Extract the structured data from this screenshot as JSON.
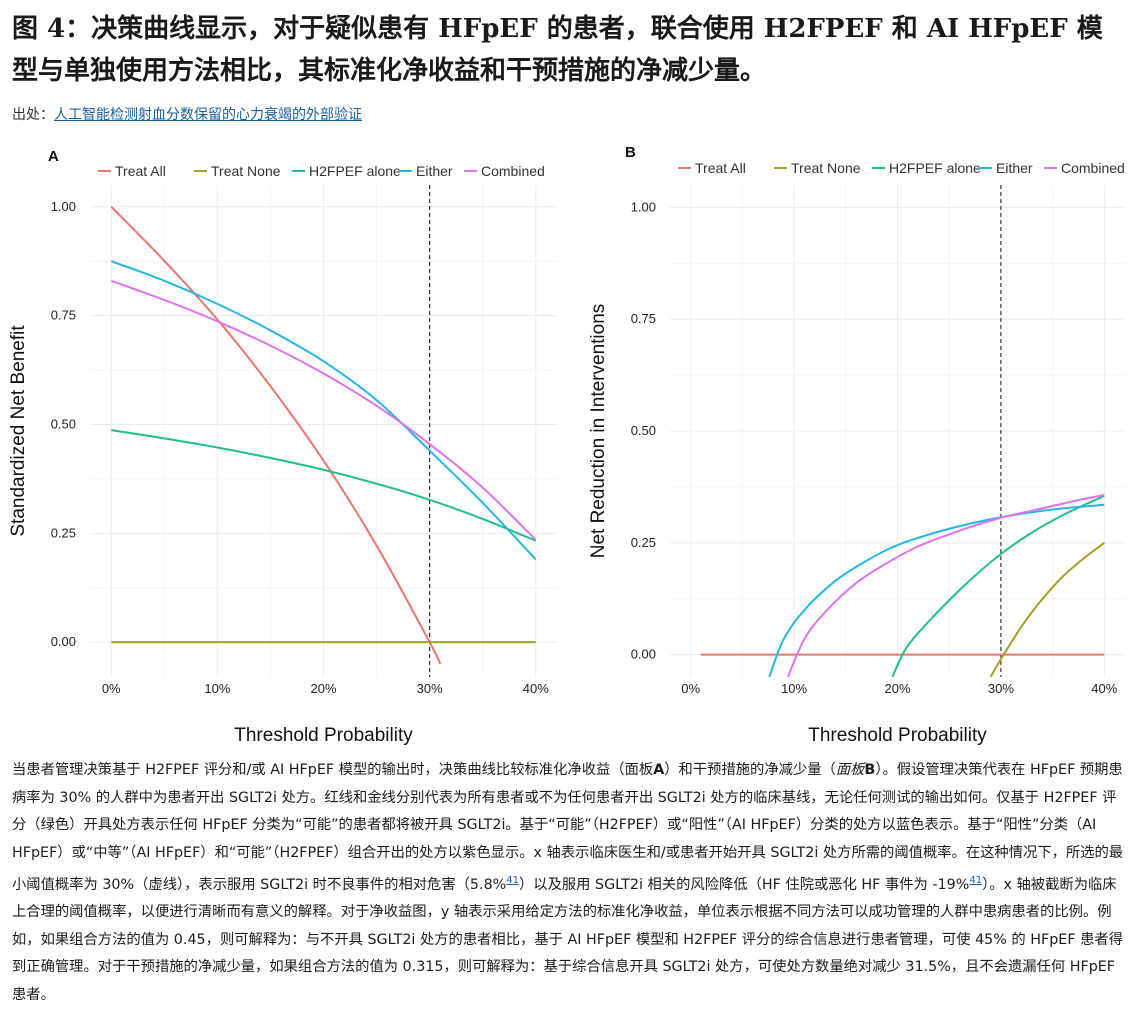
{
  "title": "图 4：决策曲线显示，对于疑似患有 HFpEF 的患者，联合使用 H2FPEF 和 AI HFpEF 模型与单独使用方法相比，其标准化净收益和干预措施的净减少量。",
  "source": {
    "label": "出处：",
    "link_text": "人工智能检测射血分数保留的心力衰竭的外部验证"
  },
  "caption": {
    "p1": "当患者管理决策基于 H2FPEF 评分和/或 AI HFpEF 模型的输出时，决策曲线比较标准化净收益（面板",
    "p1_bold": "A",
    "p2": "）和干预措施的净减少量（",
    "p2_italic": "面板",
    "p2_bold": "B",
    "p3": "）。假设管理决策代表在 HFpEF 预期患病率为 30% 的人群中为患者开出 SGLT2i 处方。红线和金线分别代表为所有患者或不为任何患者开出 SGLT2i 处方的临床基线，无论任何测试的输出如何。仅基于 H2FPEF 评分（绿色）开具处方表示任何 HFpEF 分类为“可能”的患者都将被开具 SGLT2i。基于“可能”（H2FPEF）或“阳性”（AI HFpEF）分类的处方以蓝色表示。基于“阳性”分类（AI HFpEF）或“中等”（AI HFpEF）和“可能”（H2FPEF）组合开出的处方以紫色显示。x 轴表示临床医生和/或患者开始开具 SGLT2i 处方所需的阈值概率。在这种情况下，所选的最小阈值概率为 30%（虚线），表示服用 SGLT2i 时不良事件的相对危害（5.8%",
    "cite1": "41",
    "p4": "）以及服用 SGLT2i 相关的风险降低（HF 住院或恶化 HF 事件为 -19%",
    "cite2": "41",
    "p5": "）。x 轴被截断为临床上合理的阈值概率，以便进行清晰而有意义的解释。对于净收益图，y 轴表示采用给定方法的标准化净收益，单位表示根据不同方法可以成功管理的人群中患病患者的比例。例如，如果组合方法的值为 0.45，则可解释为：与不开具 SGLT2i 处方的患者相比，基于 AI HFpEF 模型和 H2FPEF 评分的综合信息进行患者管理，可使 45% 的 HFpEF 患者得到正确管理。对于干预措施的净减少量，如果组合方法的值为 0.315，则可解释为：基于综合信息开具 SGLT2i 处方，可使处方数量绝对减少 31.5%，且不会遗漏任何 HFpEF 患者。"
  },
  "colors": {
    "treat_all": "#E8766C",
    "treat_none": "#A3A123",
    "h2fpef_alone": "#1FBE8F",
    "either": "#24B7E2",
    "combined": "#DE73EC",
    "reference_line": "#333333",
    "grid": "#ececec"
  },
  "chart_data": [
    {
      "panel_label": "A",
      "type": "line",
      "xlabel": "Threshold Probability",
      "ylabel": "Standardized Net Benefit",
      "x_ticks": [
        "0%",
        "10%",
        "20%",
        "30%",
        "40%"
      ],
      "x_tick_values": [
        0,
        0.1,
        0.2,
        0.3,
        0.4
      ],
      "y_ticks": [
        "0.00",
        "0.25",
        "0.50",
        "0.75",
        "1.00"
      ],
      "y_tick_values": [
        0,
        0.25,
        0.5,
        0.75,
        1.0
      ],
      "xlim": [
        -0.02,
        0.42
      ],
      "ylim": [
        -0.08,
        1.05
      ],
      "reference_x": 0.3,
      "legend": [
        "Treat All",
        "Treat None",
        "H2FPEF alone",
        "Either",
        "Combined"
      ],
      "series": [
        {
          "name": "Treat All",
          "color_key": "treat_all",
          "x": [
            0,
            0.05,
            0.1,
            0.15,
            0.2,
            0.25,
            0.3,
            0.31
          ],
          "y": [
            1.0,
            0.876,
            0.741,
            0.588,
            0.417,
            0.222,
            0.0,
            -0.05
          ]
        },
        {
          "name": "Treat None",
          "color_key": "treat_none",
          "x": [
            0,
            0.1,
            0.2,
            0.3,
            0.4
          ],
          "y": [
            0,
            0,
            0,
            0,
            0
          ]
        },
        {
          "name": "H2FPEF alone",
          "color_key": "h2fpef_alone",
          "x": [
            0,
            0.05,
            0.1,
            0.15,
            0.2,
            0.25,
            0.3,
            0.35,
            0.4
          ],
          "y": [
            0.487,
            0.468,
            0.447,
            0.423,
            0.396,
            0.364,
            0.327,
            0.283,
            0.233
          ]
        },
        {
          "name": "Either",
          "color_key": "either",
          "x": [
            0,
            0.05,
            0.1,
            0.15,
            0.2,
            0.25,
            0.3,
            0.35,
            0.4
          ],
          "y": [
            0.875,
            0.83,
            0.777,
            0.716,
            0.645,
            0.556,
            0.44,
            0.32,
            0.19
          ]
        },
        {
          "name": "Combined",
          "color_key": "combined",
          "x": [
            0,
            0.05,
            0.1,
            0.15,
            0.2,
            0.25,
            0.3,
            0.35,
            0.4
          ],
          "y": [
            0.83,
            0.786,
            0.737,
            0.681,
            0.617,
            0.543,
            0.455,
            0.355,
            0.235
          ]
        }
      ]
    },
    {
      "panel_label": "B",
      "type": "line",
      "xlabel": "Threshold Probability",
      "ylabel": "Net Reduction in Interventions",
      "x_ticks": [
        "0%",
        "10%",
        "20%",
        "30%",
        "40%"
      ],
      "x_tick_values": [
        0,
        0.1,
        0.2,
        0.3,
        0.4
      ],
      "y_ticks": [
        "0.00",
        "0.25",
        "0.50",
        "0.75",
        "1.00"
      ],
      "y_tick_values": [
        0,
        0.25,
        0.5,
        0.75,
        1.0
      ],
      "xlim": [
        -0.02,
        0.42
      ],
      "ylim": [
        -0.05,
        1.05
      ],
      "reference_x": 0.3,
      "legend": [
        "Treat All",
        "Treat None",
        "H2FPEF alone",
        "Either",
        "Combined"
      ],
      "series": [
        {
          "name": "Treat All",
          "color_key": "treat_all",
          "x": [
            0.01,
            0.4
          ],
          "y": [
            0,
            0
          ]
        },
        {
          "name": "Treat None",
          "color_key": "treat_none",
          "x": [
            0.29,
            0.3,
            0.32,
            0.34,
            0.36,
            0.38,
            0.4
          ],
          "y": [
            -0.05,
            -0.01,
            0.063,
            0.124,
            0.175,
            0.215,
            0.25
          ]
        },
        {
          "name": "H2FPEF alone",
          "color_key": "h2fpef_alone",
          "x": [
            0.195,
            0.21,
            0.24,
            0.27,
            0.3,
            0.33,
            0.36,
            0.4
          ],
          "y": [
            -0.05,
            0.02,
            0.098,
            0.166,
            0.225,
            0.273,
            0.312,
            0.355
          ]
        },
        {
          "name": "Either",
          "color_key": "either",
          "x": [
            0.076,
            0.09,
            0.11,
            0.14,
            0.17,
            0.2,
            0.24,
            0.28,
            0.32,
            0.36,
            0.4
          ],
          "y": [
            -0.05,
            0.035,
            0.1,
            0.165,
            0.21,
            0.245,
            0.275,
            0.298,
            0.315,
            0.327,
            0.335
          ]
        },
        {
          "name": "Combined",
          "color_key": "combined",
          "x": [
            0.094,
            0.11,
            0.13,
            0.16,
            0.19,
            0.22,
            0.26,
            0.3,
            0.34,
            0.37,
            0.4
          ],
          "y": [
            -0.05,
            0.035,
            0.095,
            0.16,
            0.205,
            0.242,
            0.277,
            0.306,
            0.327,
            0.343,
            0.357
          ]
        }
      ]
    }
  ]
}
